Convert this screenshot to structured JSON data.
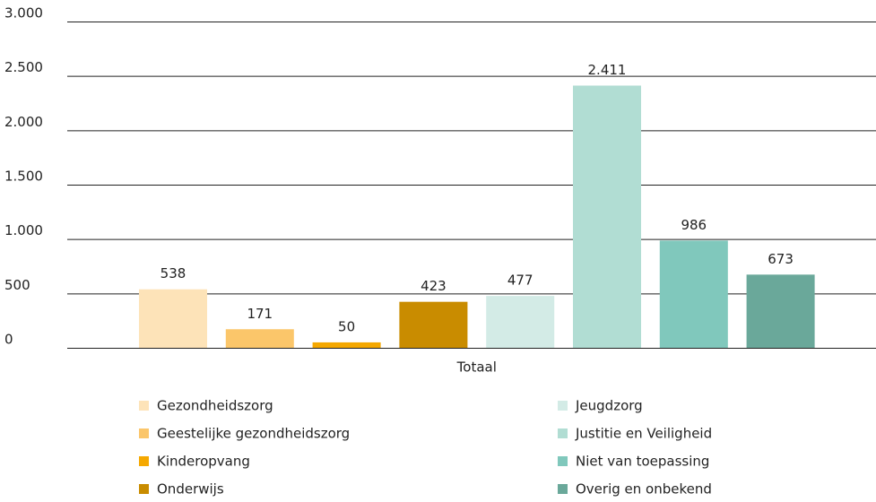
{
  "chart_data": {
    "type": "bar",
    "categories": [
      "Totaal"
    ],
    "series": [
      {
        "name": "Gezondheidszorg",
        "color": "#fde3b8",
        "values": [
          538
        ]
      },
      {
        "name": "Geestelijke gezondheidszorg",
        "color": "#fbc66a",
        "values": [
          171
        ]
      },
      {
        "name": "Kinderopvang",
        "color": "#f5a800",
        "values": [
          50
        ]
      },
      {
        "name": "Onderwijs",
        "color": "#c98c00",
        "values": [
          423
        ]
      },
      {
        "name": "Jeugdzorg",
        "color": "#d3ebe6",
        "values": [
          477
        ]
      },
      {
        "name": "Justitie en Veiligheid",
        "color": "#b1ddd3",
        "values": [
          2411
        ],
        "value_labels": [
          "2.411"
        ]
      },
      {
        "name": "Niet van toepassing",
        "color": "#80c8bc",
        "values": [
          986
        ],
        "value_labels": [
          "986"
        ]
      },
      {
        "name": "Overig en onbekend",
        "color": "#6aa89a",
        "values": [
          673
        ]
      }
    ],
    "ylim": [
      0,
      3000
    ],
    "yticks": [
      0,
      500,
      {
        "value": 1000,
        "label": "1.000"
      },
      {
        "value": 1500,
        "label": "1.500"
      },
      {
        "value": 2000,
        "label": "2.000"
      },
      {
        "value": 2500,
        "label": "2.500"
      },
      {
        "value": 3000,
        "label": "3.000"
      }
    ],
    "grid": true,
    "legend": "bottom"
  }
}
